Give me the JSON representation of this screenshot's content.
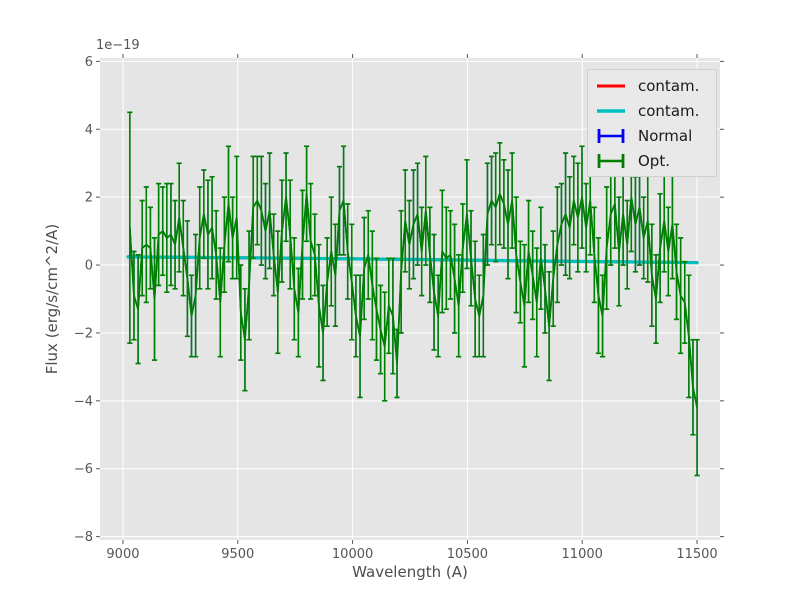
{
  "style": {
    "figure_bg": "#ffffff",
    "plot_bg": "#e5e5e5",
    "grid_color": "#ffffff",
    "tick_color": "#555555",
    "tick_label_color": "#555555",
    "axis_label_color": "#4d4d4d",
    "legend_bg": "#e9e9e9",
    "legend_border": "#cfcfcf",
    "legend_text_color": "#1a1a1a"
  },
  "chart_data": {
    "type": "line",
    "title": "",
    "xlabel": "Wavelength (A)",
    "ylabel": "Flux (erg/s/cm^2/A)",
    "offset_text": "1e−19",
    "unit_scale": "1e-19 erg/s/cm^2/A",
    "xlim": [
      8900,
      11600
    ],
    "ylim": [
      -8.1,
      6.1
    ],
    "grid": true,
    "legend_position": "upper right",
    "xticks": {
      "values": [
        9000,
        9500,
        10000,
        10500,
        11000,
        11500
      ],
      "labels": [
        "9000",
        "9500",
        "10000",
        "10500",
        "11000",
        "11500"
      ]
    },
    "yticks": {
      "values": [
        6,
        4,
        2,
        0,
        -2,
        -4,
        -6,
        -8
      ],
      "labels": [
        "6",
        "4",
        "2",
        "0",
        "−2",
        "−4",
        "−6",
        "−8"
      ]
    },
    "legend": [
      {
        "label": "contam.",
        "color": "#ff0000",
        "glyph": "line"
      },
      {
        "label": "contam.",
        "color": "#00bfbf",
        "glyph": "errorbar"
      },
      {
        "label": "Normal",
        "color": "#0000ff",
        "glyph": "errorbar"
      },
      {
        "label": "Opt.",
        "color": "#008000",
        "glyph": "errorbar"
      }
    ],
    "series": [
      {
        "name": "contam.",
        "color": "#ff0000",
        "style": "line",
        "visible_note": "fully hidden beneath cyan contam. line",
        "points": [
          [
            9022,
            0.24
          ],
          [
            9600,
            0.21
          ],
          [
            10200,
            0.17
          ],
          [
            10800,
            0.12
          ],
          [
            11500,
            0.07
          ]
        ]
      },
      {
        "name": "contam.",
        "color": "#00bfbf",
        "style": "line",
        "points": [
          [
            9022,
            0.24
          ],
          [
            9600,
            0.21
          ],
          [
            10200,
            0.17
          ],
          [
            10800,
            0.12
          ],
          [
            11500,
            0.07
          ]
        ]
      },
      {
        "name": "Normal",
        "color": "#0000ff",
        "style": "errorbar",
        "visible_note": "fully hidden beneath Opt. series",
        "same_data_as_index": 3
      },
      {
        "name": "Opt.",
        "color": "#008000",
        "style": "errorbar",
        "x_start": 9030,
        "x_step": 17.9,
        "values": [
          1.1,
          -0.9,
          -1.3,
          0.5,
          0.6,
          0.5,
          -1.0,
          0.9,
          1.0,
          0.8,
          0.9,
          0.6,
          1.4,
          0.5,
          -0.4,
          -1.5,
          -0.9,
          0.8,
          1.5,
          0.9,
          1.1,
          0.3,
          -1.1,
          0.6,
          1.8,
          0.8,
          1.4,
          -1.4,
          -2.2,
          -0.6,
          1.7,
          1.9,
          1.6,
          1.0,
          1.6,
          0.3,
          -0.8,
          1.0,
          2.0,
          0.9,
          -0.7,
          -1.4,
          0.6,
          2.1,
          0.7,
          0.3,
          -1.2,
          -2.0,
          -0.5,
          0.4,
          -0.3,
          1.6,
          1.9,
          0.4,
          -0.5,
          -1.5,
          -2.1,
          -0.1,
          0.3,
          -0.6,
          -1.3,
          -1.9,
          -2.4,
          -1.2,
          -1.5,
          -2.9,
          -0.2,
          1.3,
          0.6,
          1.2,
          1.5,
          0.4,
          1.6,
          0.3,
          -0.8,
          -1.5,
          0.4,
          0.2,
          0.3,
          -0.4,
          -1.2,
          0.5,
          1.5,
          0.2,
          -1.0,
          -1.5,
          -0.9,
          1.5,
          1.9,
          1.7,
          2.1,
          1.8,
          1.2,
          1.9,
          0.3,
          -0.5,
          -1.2,
          0.4,
          -0.3,
          -1.1,
          0.2,
          -0.7,
          -1.8,
          -0.4,
          0.6,
          1.2,
          1.5,
          1.1,
          1.9,
          1.4,
          2.0,
          1.1,
          1.9,
          0.3,
          -0.9,
          -1.5,
          0.5,
          1.5,
          1.8,
          0.4,
          1.5,
          0.6,
          2.0,
          1.2,
          1.7,
          0.8,
          1.3,
          -0.3,
          -1.0,
          0.5,
          1.3,
          0.4,
          1.2,
          -0.2,
          -0.9,
          -1.1,
          -2.1,
          -3.6,
          -4.2
        ],
        "errors": [
          3.4,
          1.3,
          1.6,
          1.4,
          1.7,
          1.2,
          1.8,
          1.5,
          1.3,
          1.6,
          1.5,
          1.3,
          1.6,
          1.4,
          1.7,
          1.2,
          1.8,
          1.5,
          1.3,
          1.6,
          1.5,
          1.3,
          1.6,
          1.4,
          1.7,
          1.2,
          1.8,
          1.4,
          1.5,
          1.6,
          1.5,
          1.3,
          1.6,
          1.4,
          1.7,
          1.2,
          1.8,
          1.5,
          1.3,
          1.6,
          1.5,
          1.3,
          1.6,
          1.4,
          1.7,
          1.2,
          1.8,
          1.4,
          1.3,
          1.6,
          1.5,
          1.3,
          1.6,
          1.4,
          1.7,
          1.2,
          1.8,
          1.5,
          1.3,
          1.6,
          1.5,
          1.3,
          1.6,
          1.4,
          1.7,
          1.0,
          1.8,
          1.5,
          1.3,
          1.6,
          1.5,
          1.3,
          1.6,
          1.4,
          1.7,
          1.2,
          1.8,
          1.5,
          1.3,
          1.6,
          1.5,
          1.3,
          1.6,
          1.4,
          1.7,
          1.2,
          1.8,
          1.5,
          1.3,
          1.6,
          1.5,
          1.3,
          1.6,
          1.4,
          1.7,
          1.2,
          1.8,
          1.5,
          1.3,
          1.6,
          1.5,
          1.3,
          1.6,
          1.4,
          1.7,
          1.2,
          1.8,
          1.5,
          1.3,
          1.6,
          1.5,
          1.3,
          1.6,
          1.4,
          1.7,
          1.2,
          1.8,
          1.5,
          1.3,
          1.6,
          1.5,
          1.3,
          1.6,
          1.4,
          1.7,
          1.2,
          1.8,
          1.5,
          1.3,
          1.6,
          1.5,
          1.3,
          1.6,
          1.4,
          1.7,
          1.2,
          1.8,
          1.4,
          2.0
        ]
      }
    ]
  }
}
